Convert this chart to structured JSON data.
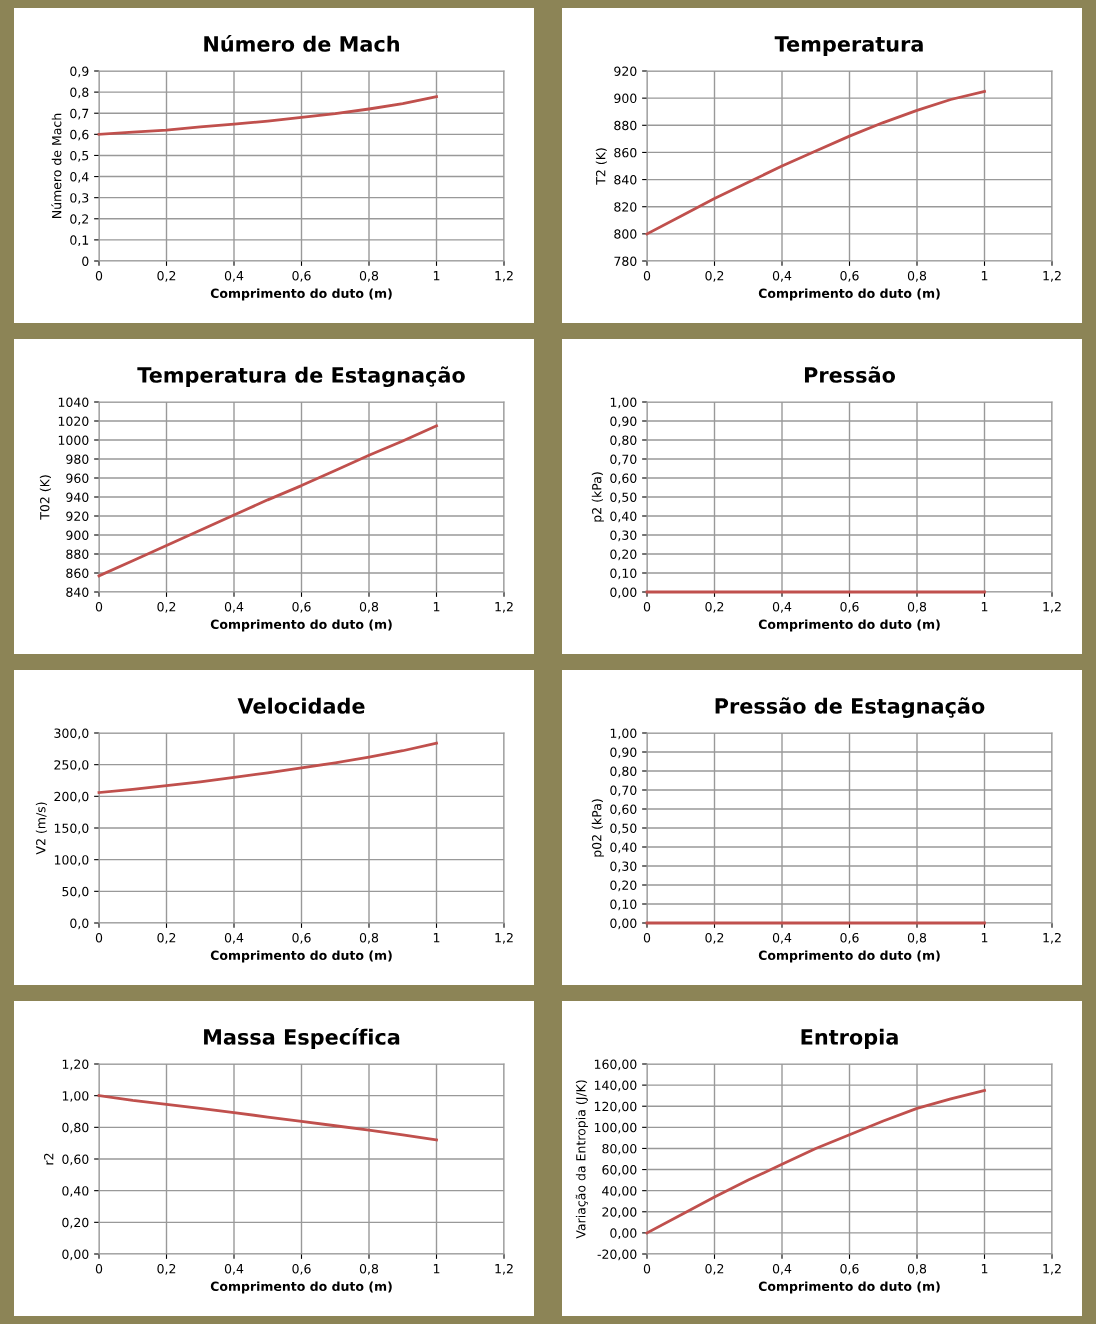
{
  "chart_data": [
    {
      "type": "line",
      "title": "Número de Mach",
      "xlabel": "Comprimento do duto (m)",
      "ylabel": "Número de Mach",
      "grid": true,
      "marker": "none",
      "x": [
        0,
        0.1,
        0.2,
        0.3,
        0.4,
        0.5,
        0.6,
        0.7,
        0.8,
        0.9,
        1
      ],
      "series": [
        {
          "color": "#c0504d",
          "values": [
            0.6,
            0.61,
            0.62,
            0.635,
            0.648,
            0.663,
            0.68,
            0.698,
            0.72,
            0.745,
            0.778
          ]
        }
      ],
      "xlim": [
        0,
        1.2
      ],
      "xticks": [
        0,
        {
          "value": 0.2,
          "label": "0,2"
        },
        {
          "value": 0.4,
          "label": "0,4"
        },
        {
          "value": 0.6,
          "label": "0,6"
        },
        {
          "value": 0.8,
          "label": "0,8"
        },
        1,
        {
          "value": 1.2,
          "label": "1,2"
        }
      ],
      "ylim": [
        0,
        0.9
      ],
      "yticks": [
        0,
        {
          "value": 0.1,
          "label": "0,1"
        },
        {
          "value": 0.2,
          "label": "0,2"
        },
        {
          "value": 0.3,
          "label": "0,3"
        },
        {
          "value": 0.4,
          "label": "0,4"
        },
        {
          "value": 0.5,
          "label": "0,5"
        },
        {
          "value": 0.6,
          "label": "0,6"
        },
        {
          "value": 0.7,
          "label": "0,7"
        },
        {
          "value": 0.8,
          "label": "0,8"
        },
        {
          "value": 0.9,
          "label": "0,9"
        }
      ]
    },
    {
      "type": "line",
      "title": "Temperatura",
      "xlabel": "Comprimento do duto (m)",
      "ylabel": "T2 (K)",
      "grid": true,
      "marker": "none",
      "x": [
        0,
        0.1,
        0.2,
        0.3,
        0.4,
        0.5,
        0.6,
        0.7,
        0.8,
        0.9,
        1
      ],
      "series": [
        {
          "color": "#c0504d",
          "values": [
            800,
            813,
            826,
            838,
            850,
            861,
            872,
            882,
            891,
            899,
            905
          ]
        }
      ],
      "xlim": [
        0,
        1.2
      ],
      "xticks": [
        0,
        {
          "value": 0.2,
          "label": "0,2"
        },
        {
          "value": 0.4,
          "label": "0,4"
        },
        {
          "value": 0.6,
          "label": "0,6"
        },
        {
          "value": 0.8,
          "label": "0,8"
        },
        1,
        {
          "value": 1.2,
          "label": "1,2"
        }
      ],
      "ylim": [
        780,
        920
      ],
      "yticks": [
        780,
        800,
        820,
        840,
        860,
        880,
        900,
        920
      ]
    },
    {
      "type": "line",
      "title": "Temperatura de Estagnação",
      "xlabel": "Comprimento do duto (m)",
      "ylabel": "T02 (K)",
      "grid": true,
      "marker": "none",
      "x": [
        0,
        0.1,
        0.2,
        0.3,
        0.4,
        0.5,
        0.6,
        0.7,
        0.8,
        0.9,
        1
      ],
      "series": [
        {
          "color": "#c0504d",
          "values": [
            857,
            873,
            889,
            905,
            921,
            937,
            952,
            968,
            984,
            999,
            1015
          ]
        }
      ],
      "xlim": [
        0,
        1.2
      ],
      "xticks": [
        0,
        {
          "value": 0.2,
          "label": "0,2"
        },
        {
          "value": 0.4,
          "label": "0,4"
        },
        {
          "value": 0.6,
          "label": "0,6"
        },
        {
          "value": 0.8,
          "label": "0,8"
        },
        1,
        {
          "value": 1.2,
          "label": "1,2"
        }
      ],
      "ylim": [
        840,
        1040
      ],
      "yticks": [
        840,
        860,
        880,
        900,
        920,
        940,
        960,
        980,
        1000,
        1020,
        1040
      ]
    },
    {
      "type": "line",
      "title": "Pressão",
      "xlabel": "Comprimento do duto (m)",
      "ylabel": "p2 (kPa)",
      "grid": true,
      "marker": "none",
      "x": [
        0,
        0.1,
        0.2,
        0.3,
        0.4,
        0.5,
        0.6,
        0.7,
        0.8,
        0.9,
        1
      ],
      "series": [
        {
          "color": "#c0504d",
          "values": [
            0,
            0,
            0,
            0,
            0,
            0,
            0,
            0,
            0,
            0,
            0
          ]
        }
      ],
      "xlim": [
        0,
        1.2
      ],
      "xticks": [
        0,
        {
          "value": 0.2,
          "label": "0,2"
        },
        {
          "value": 0.4,
          "label": "0,4"
        },
        {
          "value": 0.6,
          "label": "0,6"
        },
        {
          "value": 0.8,
          "label": "0,8"
        },
        1,
        {
          "value": 1.2,
          "label": "1,2"
        }
      ],
      "ylim": [
        0,
        1
      ],
      "yticks": [
        {
          "value": 0,
          "label": "0,00"
        },
        {
          "value": 0.1,
          "label": "0,10"
        },
        {
          "value": 0.2,
          "label": "0,20"
        },
        {
          "value": 0.3,
          "label": "0,30"
        },
        {
          "value": 0.4,
          "label": "0,40"
        },
        {
          "value": 0.5,
          "label": "0,50"
        },
        {
          "value": 0.6,
          "label": "0,60"
        },
        {
          "value": 0.7,
          "label": "0,70"
        },
        {
          "value": 0.8,
          "label": "0,80"
        },
        {
          "value": 0.9,
          "label": "0,90"
        },
        {
          "value": 1,
          "label": "1,00"
        }
      ]
    },
    {
      "type": "line",
      "title": "Velocidade",
      "xlabel": "Comprimento do duto (m)",
      "ylabel": "V2 (m/s)",
      "grid": true,
      "marker": "none",
      "x": [
        0,
        0.1,
        0.2,
        0.3,
        0.4,
        0.5,
        0.6,
        0.7,
        0.8,
        0.9,
        1
      ],
      "series": [
        {
          "color": "#c0504d",
          "values": [
            206,
            211,
            217,
            223,
            230,
            237,
            245,
            253,
            262,
            272,
            284
          ]
        }
      ],
      "xlim": [
        0,
        1.2
      ],
      "xticks": [
        0,
        {
          "value": 0.2,
          "label": "0,2"
        },
        {
          "value": 0.4,
          "label": "0,4"
        },
        {
          "value": 0.6,
          "label": "0,6"
        },
        {
          "value": 0.8,
          "label": "0,8"
        },
        1,
        {
          "value": 1.2,
          "label": "1,2"
        }
      ],
      "ylim": [
        0,
        300
      ],
      "yticks": [
        {
          "value": 0,
          "label": "0,0"
        },
        {
          "value": 50,
          "label": "50,0"
        },
        {
          "value": 100,
          "label": "100,0"
        },
        {
          "value": 150,
          "label": "150,0"
        },
        {
          "value": 200,
          "label": "200,0"
        },
        {
          "value": 250,
          "label": "250,0"
        },
        {
          "value": 300,
          "label": "300,0"
        }
      ]
    },
    {
      "type": "line",
      "title": "Pressão de Estagnação",
      "xlabel": "Comprimento do duto (m)",
      "ylabel": "p02 (kPa)",
      "grid": true,
      "marker": "none",
      "x": [
        0,
        0.1,
        0.2,
        0.3,
        0.4,
        0.5,
        0.6,
        0.7,
        0.8,
        0.9,
        1
      ],
      "series": [
        {
          "color": "#c0504d",
          "values": [
            0,
            0,
            0,
            0,
            0,
            0,
            0,
            0,
            0,
            0,
            0
          ]
        }
      ],
      "xlim": [
        0,
        1.2
      ],
      "xticks": [
        0,
        {
          "value": 0.2,
          "label": "0,2"
        },
        {
          "value": 0.4,
          "label": "0,4"
        },
        {
          "value": 0.6,
          "label": "0,6"
        },
        {
          "value": 0.8,
          "label": "0,8"
        },
        1,
        {
          "value": 1.2,
          "label": "1,2"
        }
      ],
      "ylim": [
        0,
        1
      ],
      "yticks": [
        {
          "value": 0,
          "label": "0,00"
        },
        {
          "value": 0.1,
          "label": "0,10"
        },
        {
          "value": 0.2,
          "label": "0,20"
        },
        {
          "value": 0.3,
          "label": "0,30"
        },
        {
          "value": 0.4,
          "label": "0,40"
        },
        {
          "value": 0.5,
          "label": "0,50"
        },
        {
          "value": 0.6,
          "label": "0,60"
        },
        {
          "value": 0.7,
          "label": "0,70"
        },
        {
          "value": 0.8,
          "label": "0,80"
        },
        {
          "value": 0.9,
          "label": "0,90"
        },
        {
          "value": 1,
          "label": "1,00"
        }
      ]
    },
    {
      "type": "line",
      "title": "Massa Específica",
      "xlabel": "Comprimento do duto (m)",
      "ylabel": "r2",
      "grid": true,
      "marker": "none",
      "x": [
        0,
        0.1,
        0.2,
        0.3,
        0.4,
        0.5,
        0.6,
        0.7,
        0.8,
        0.9,
        1
      ],
      "series": [
        {
          "color": "#c0504d",
          "values": [
            1.0,
            0.97,
            0.945,
            0.92,
            0.893,
            0.865,
            0.838,
            0.81,
            0.782,
            0.752,
            0.72
          ]
        }
      ],
      "xlim": [
        0,
        1.2
      ],
      "xticks": [
        0,
        {
          "value": 0.2,
          "label": "0,2"
        },
        {
          "value": 0.4,
          "label": "0,4"
        },
        {
          "value": 0.6,
          "label": "0,6"
        },
        {
          "value": 0.8,
          "label": "0,8"
        },
        1,
        {
          "value": 1.2,
          "label": "1,2"
        }
      ],
      "ylim": [
        0,
        1.2
      ],
      "yticks": [
        {
          "value": 0,
          "label": "0,00"
        },
        {
          "value": 0.2,
          "label": "0,20"
        },
        {
          "value": 0.4,
          "label": "0,40"
        },
        {
          "value": 0.6,
          "label": "0,60"
        },
        {
          "value": 0.8,
          "label": "0,80"
        },
        {
          "value": 1,
          "label": "1,00"
        },
        {
          "value": 1.2,
          "label": "1,20"
        }
      ]
    },
    {
      "type": "line",
      "title": "Entropia",
      "xlabel": "Comprimento do duto (m)",
      "ylabel": "Variação da Entropia (J/K)",
      "grid": true,
      "marker": "none",
      "x": [
        0,
        0.1,
        0.2,
        0.3,
        0.4,
        0.5,
        0.6,
        0.7,
        0.8,
        0.9,
        1
      ],
      "series": [
        {
          "color": "#c0504d",
          "values": [
            0,
            17,
            34,
            50,
            65,
            80,
            93,
            106,
            118,
            127,
            135
          ]
        }
      ],
      "xlim": [
        0,
        1.2
      ],
      "xticks": [
        0,
        {
          "value": 0.2,
          "label": "0,2"
        },
        {
          "value": 0.4,
          "label": "0,4"
        },
        {
          "value": 0.6,
          "label": "0,6"
        },
        {
          "value": 0.8,
          "label": "0,8"
        },
        1,
        {
          "value": 1.2,
          "label": "1,2"
        }
      ],
      "ylim": [
        -20,
        160
      ],
      "yticks": [
        {
          "value": -20,
          "label": "-20,00"
        },
        {
          "value": 0,
          "label": "0,00"
        },
        {
          "value": 20,
          "label": "20,00"
        },
        {
          "value": 40,
          "label": "40,00"
        },
        {
          "value": 60,
          "label": "60,00"
        },
        {
          "value": 80,
          "label": "80,00"
        },
        {
          "value": 100,
          "label": "100,00"
        },
        {
          "value": 120,
          "label": "120,00"
        },
        {
          "value": 140,
          "label": "140,00"
        },
        {
          "value": 160,
          "label": "160,00"
        }
      ]
    }
  ]
}
